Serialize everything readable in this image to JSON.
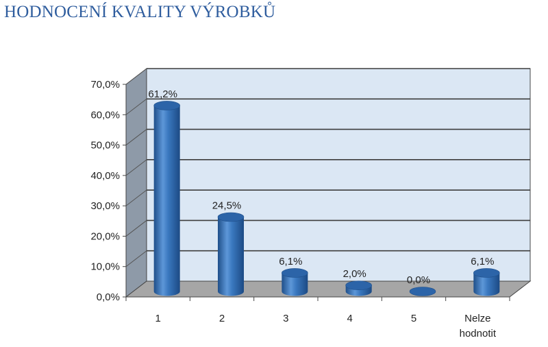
{
  "page": {
    "title": "HODNOCENÍ KVALITY VÝROBKŮ"
  },
  "chart_data": {
    "type": "bar",
    "style": "3d-cylinder",
    "title": "",
    "xlabel": "",
    "ylabel": "",
    "categories": [
      "1",
      "2",
      "3",
      "4",
      "5",
      "Nelze hodnotit"
    ],
    "values": [
      61.2,
      24.5,
      6.1,
      2.0,
      0.0,
      6.1
    ],
    "data_labels": [
      "61,2%",
      "24,5%",
      "6,1%",
      "2,0%",
      "0,0%",
      "6,1%"
    ],
    "ylim": [
      0,
      70
    ],
    "y_ticks": [
      0,
      10,
      20,
      30,
      40,
      50,
      60,
      70
    ],
    "y_tick_labels": [
      "0,0%",
      "10,0%",
      "20,0%",
      "30,0%",
      "40,0%",
      "50,0%",
      "60,0%",
      "70,0%"
    ],
    "grid": true,
    "legend": "none",
    "colors": {
      "bar": "#3a78bf",
      "bar_dark": "#1f4f8a",
      "bar_light": "#7fb0e6",
      "back_wall": "#dbe7f4",
      "side_wall": "#8e9aa8",
      "floor": "#a6a6a6",
      "grid": "#3c3c3c",
      "title": "#2f5d9e"
    }
  }
}
